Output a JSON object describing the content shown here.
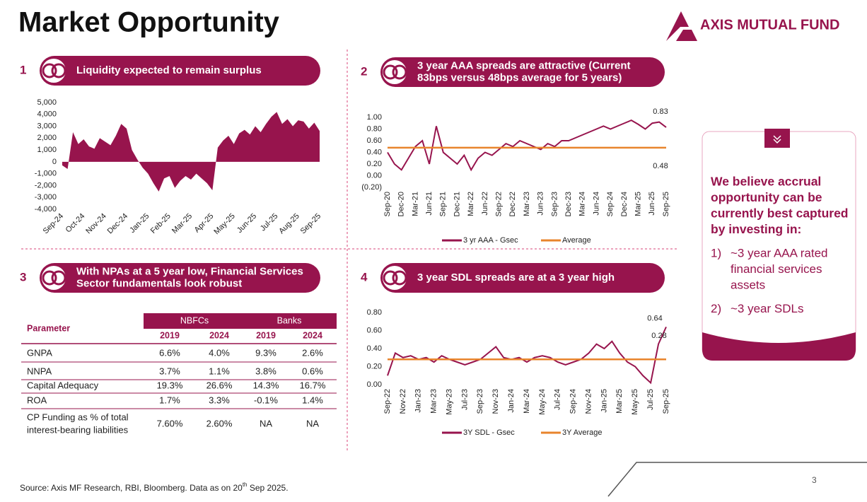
{
  "header": {
    "title": "Market Opportunity",
    "logo": "AXIS MUTUAL FUND"
  },
  "panels": [
    {
      "number": "1",
      "title_lines": [
        "Liquidity expected to remain surplus"
      ],
      "chart_data": {
        "type": "area",
        "color": "#97144d",
        "categories": [
          "Sep-24",
          null,
          null,
          null,
          "Oct-24",
          null,
          null,
          null,
          "Nov-24",
          null,
          null,
          null,
          "Dec-24",
          null,
          null,
          null,
          "Jan-25",
          null,
          null,
          null,
          "Feb-25",
          null,
          null,
          null,
          "Mar-25",
          null,
          null,
          null,
          "Apr-25",
          null,
          null,
          null,
          "May-25",
          null,
          null,
          null,
          "Jun-25",
          null,
          null,
          null,
          "Jul-25",
          null,
          null,
          null,
          "Aug-25",
          null,
          null,
          null,
          "Sep-25"
        ],
        "values": [
          -300,
          -600,
          2500,
          1500,
          1900,
          1300,
          1100,
          2000,
          1700,
          1400,
          2200,
          3200,
          2800,
          1000,
          200,
          -500,
          -1000,
          -1800,
          -2500,
          -1400,
          -1200,
          -2200,
          -1600,
          -1200,
          -1500,
          -1000,
          -1400,
          -1800,
          -2400,
          1200,
          1800,
          2200,
          1500,
          2400,
          2700,
          2300,
          3000,
          2500,
          3200,
          3800,
          4200,
          3200,
          3600,
          3000,
          3500,
          3400,
          2800,
          3300,
          2600
        ],
        "ylim": [
          -4000,
          5000
        ],
        "yticks": [
          {
            "value": 5000,
            "label": "5,000"
          },
          {
            "value": 4000,
            "label": "4,000"
          },
          {
            "value": 3000,
            "label": "3,000"
          },
          {
            "value": 2000,
            "label": "2,000"
          },
          {
            "value": 1000,
            "label": "1,000"
          },
          0,
          {
            "value": -1000,
            "label": "-1,000"
          },
          {
            "value": -2000,
            "label": "-2,000"
          },
          {
            "value": -3000,
            "label": "-3,000"
          },
          {
            "value": -4000,
            "label": "-4,000"
          }
        ]
      }
    },
    {
      "number": "2",
      "title_lines": [
        "3 year AAA spreads are attractive (Current",
        "83bps versus 48bps average for 5 years)"
      ],
      "chart_data": {
        "type": "line",
        "categories": [
          "Sep-20",
          null,
          "Dec-20",
          null,
          "Mar-21",
          null,
          "Jun-21",
          null,
          "Sep-21",
          null,
          "Dec-21",
          null,
          "Mar-22",
          null,
          "Jun-22",
          null,
          "Sep-22",
          null,
          "Dec-22",
          null,
          "Mar-23",
          null,
          "Jun-23",
          null,
          "Sep-23",
          null,
          "Dec-23",
          null,
          "Mar-24",
          null,
          "Jun-24",
          null,
          "Sep-24",
          null,
          "Dec-24",
          null,
          "Mar-25",
          null,
          "Jun-25",
          null,
          "Sep-25"
        ],
        "series": [
          {
            "name": "3 yr AAA - Gsec",
            "color": "#97144d",
            "values": [
              0.4,
              0.2,
              0.1,
              0.3,
              0.5,
              0.6,
              0.2,
              0.85,
              0.4,
              0.3,
              0.2,
              0.35,
              0.1,
              0.3,
              0.4,
              0.35,
              0.45,
              0.55,
              0.5,
              0.6,
              0.55,
              0.5,
              0.45,
              0.55,
              0.5,
              0.6,
              0.6,
              0.65,
              0.7,
              0.75,
              0.8,
              0.85,
              0.8,
              0.85,
              0.9,
              0.95,
              0.88,
              0.8,
              0.9,
              0.92,
              0.83
            ]
          },
          {
            "name": "Average",
            "color": "#e8842c",
            "values": [
              0.48,
              0.48,
              0.48,
              0.48,
              0.48,
              0.48,
              0.48,
              0.48,
              0.48,
              0.48,
              0.48,
              0.48,
              0.48,
              0.48,
              0.48,
              0.48,
              0.48,
              0.48,
              0.48,
              0.48,
              0.48,
              0.48,
              0.48,
              0.48,
              0.48,
              0.48,
              0.48,
              0.48,
              0.48,
              0.48,
              0.48,
              0.48,
              0.48,
              0.48,
              0.48,
              0.48,
              0.48,
              0.48,
              0.48,
              0.48,
              0.48
            ]
          }
        ],
        "annotations": [
          0.83,
          0.48
        ],
        "ylim": [
          -0.2,
          1.0
        ],
        "yticks": [
          {
            "value": 1.0,
            "label": "1.00"
          },
          {
            "value": 0.8,
            "label": "0.80"
          },
          {
            "value": 0.6,
            "label": "0.60"
          },
          {
            "value": 0.4,
            "label": "0.40"
          },
          {
            "value": 0.2,
            "label": "0.20"
          },
          {
            "value": 0,
            "label": "0.00"
          },
          {
            "value": -0.2,
            "label": "(0.20)"
          }
        ]
      }
    },
    {
      "number": "3",
      "title_lines": [
        "With NPAs at a 5 year low, Financial Services",
        "Sector fundamentals look robust"
      ],
      "table": {
        "parameter_label": "Parameter",
        "groups": [
          "NBFCs",
          "Banks"
        ],
        "years": [
          "2019",
          "2024",
          "2019",
          "2024"
        ],
        "rows": [
          [
            [
              "GNPA"
            ],
            "6.6%",
            "4.0%",
            "9.3%",
            "2.6%"
          ],
          [
            [
              "NNPA"
            ],
            "3.7%",
            "1.1%",
            "3.8%",
            "0.6%"
          ],
          [
            [
              "Capital Adequacy"
            ],
            "19.3%",
            "26.6%",
            "14.3%",
            "16.7%"
          ],
          [
            [
              "ROA"
            ],
            "1.7%",
            "3.3%",
            "-0.1%",
            "1.4%"
          ],
          [
            [
              "CP Funding as % of total",
              "interest-bearing liabilities"
            ],
            "7.60%",
            "2.60%",
            "NA",
            "NA"
          ]
        ]
      }
    },
    {
      "number": "4",
      "title_lines": [
        "3 year SDL spreads are at a 3 year high"
      ],
      "chart_data": {
        "type": "line",
        "categories": [
          "Sep-22",
          null,
          "Nov-22",
          null,
          "Jan-23",
          null,
          "Mar-23",
          null,
          "May-23",
          null,
          "Jul-23",
          null,
          "Sep-23",
          null,
          "Nov-23",
          null,
          "Jan-24",
          null,
          "Mar-24",
          null,
          "May-24",
          null,
          "Jul-24",
          null,
          "Sep-24",
          null,
          "Nov-24",
          null,
          "Jan-25",
          null,
          "Mar-25",
          null,
          "May-25",
          null,
          "Jul-25",
          null,
          "Sep-25"
        ],
        "series": [
          {
            "name": "3Y SDL - Gsec",
            "color": "#97144d",
            "values": [
              0.1,
              0.35,
              0.3,
              0.32,
              0.28,
              0.3,
              0.25,
              0.32,
              0.28,
              0.25,
              0.22,
              0.25,
              0.28,
              0.35,
              0.42,
              0.3,
              0.28,
              0.3,
              0.25,
              0.3,
              0.32,
              0.3,
              0.25,
              0.22,
              0.25,
              0.28,
              0.35,
              0.45,
              0.4,
              0.48,
              0.35,
              0.25,
              0.2,
              0.1,
              0.02,
              0.45,
              0.64
            ]
          },
          {
            "name": "3Y Average",
            "color": "#e8842c",
            "values": [
              0.28,
              0.28,
              0.28,
              0.28,
              0.28,
              0.28,
              0.28,
              0.28,
              0.28,
              0.28,
              0.28,
              0.28,
              0.28,
              0.28,
              0.28,
              0.28,
              0.28,
              0.28,
              0.28,
              0.28,
              0.28,
              0.28,
              0.28,
              0.28,
              0.28,
              0.28,
              0.28,
              0.28,
              0.28,
              0.28,
              0.28,
              0.28,
              0.28,
              0.28,
              0.28,
              0.28,
              0.28
            ]
          }
        ],
        "annotations": [
          0.64,
          0.28
        ],
        "ylim": [
          0,
          0.8
        ],
        "yticks": [
          {
            "value": 0.8,
            "label": "0.80"
          },
          {
            "value": 0.6,
            "label": "0.60"
          },
          {
            "value": 0.4,
            "label": "0.40"
          },
          {
            "value": 0.2,
            "label": "0.20"
          },
          {
            "value": 0,
            "label": "0.00"
          }
        ]
      }
    }
  ],
  "callout": {
    "heading_lines": [
      "We believe accrual",
      "opportunity can be",
      "currently best captured",
      "by investing in:"
    ],
    "items": [
      {
        "marker": "1)",
        "lines": [
          "~3 year AAA rated",
          "financial services",
          "assets"
        ]
      },
      {
        "marker": "2)",
        "lines": [
          "~3 year SDLs"
        ]
      }
    ]
  },
  "footer": {
    "source": [
      "Source: Axis MF Research, RBI, Bloomberg. Data as on 20",
      "th",
      " Sep 2025."
    ],
    "page": "3"
  }
}
